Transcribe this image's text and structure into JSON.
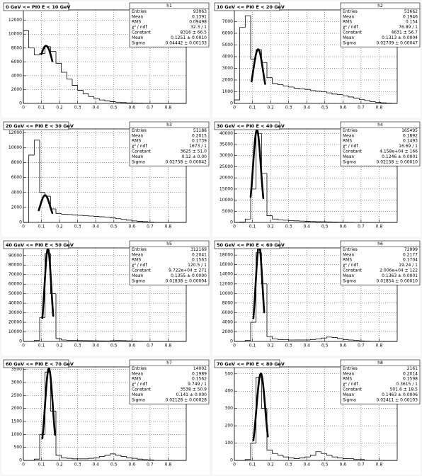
{
  "chart_data": [
    {
      "type": "histogram",
      "title": "0 GeV <= PI0 E < 10 GeV",
      "bins": [
        0,
        0.03,
        0.06,
        0.09,
        0.12,
        0.15,
        0.18,
        0.21,
        0.24,
        0.27,
        0.3,
        0.33,
        0.36,
        0.39,
        0.42,
        0.45,
        0.48,
        0.51,
        0.54,
        0.57,
        0.6,
        0.63,
        0.66,
        0.69,
        0.72,
        0.75,
        0.78,
        0.81,
        0.84,
        0.87,
        0.9
      ],
      "values": [
        10500,
        8000,
        7000,
        7200,
        8200,
        7500,
        5800,
        4500,
        3500,
        2600,
        1900,
        1400,
        1000,
        700,
        500,
        350,
        250,
        180,
        120,
        80,
        50,
        30,
        20,
        10,
        5,
        0,
        0,
        0,
        0,
        0
      ],
      "xlim": [
        0,
        0.9
      ],
      "xticks": [
        0,
        0.1,
        0.2,
        0.3,
        0.4,
        0.5,
        0.6,
        0.7,
        0.8
      ],
      "ylim": [
        0,
        13500
      ],
      "yticks": [
        0,
        2000,
        4000,
        6000,
        8000,
        10000,
        12000
      ],
      "grid": true,
      "color": "#000000",
      "fit": {
        "constant": 8316,
        "mean": 0.1251,
        "sigma": 0.04442,
        "range": [
          0.1,
          0.16
        ]
      },
      "stats": {
        "name": "h1",
        "rows": [
          [
            "Entries",
            "93063"
          ],
          [
            "Mean",
            "0.1391"
          ],
          [
            "RMS",
            "0.09498"
          ],
          [
            "χ² / ndf",
            "32.3 / 1"
          ],
          [
            "Constant",
            "8316 ± 66.5"
          ],
          [
            "Mean",
            "0.1251 ± 0.0010"
          ],
          [
            "Sigma",
            "0.04442 ± 0.00133"
          ]
        ]
      }
    },
    {
      "type": "histogram",
      "title": "10 GeV <= PI0 E < 20 GeV",
      "bins": [
        0,
        0.03,
        0.06,
        0.09,
        0.12,
        0.15,
        0.18,
        0.21,
        0.24,
        0.27,
        0.3,
        0.33,
        0.36,
        0.39,
        0.42,
        0.45,
        0.48,
        0.51,
        0.54,
        0.57,
        0.6,
        0.63,
        0.66,
        0.69,
        0.72,
        0.75,
        0.78,
        0.81,
        0.84,
        0.87,
        0.9
      ],
      "values": [
        300,
        6500,
        7500,
        3800,
        4600,
        3500,
        2200,
        1700,
        1600,
        1500,
        1400,
        1300,
        1250,
        1200,
        1100,
        1050,
        1000,
        900,
        800,
        750,
        650,
        550,
        450,
        350,
        250,
        150,
        100,
        50,
        20,
        0
      ],
      "xlim": [
        0,
        0.9
      ],
      "xticks": [
        0,
        0.1,
        0.2,
        0.3,
        0.4,
        0.5,
        0.6,
        0.7,
        0.8
      ],
      "ylim": [
        0,
        8000
      ],
      "yticks": [
        0,
        1000,
        2000,
        3000,
        4000,
        5000,
        6000,
        7000
      ],
      "grid": true,
      "color": "#000000",
      "fit": {
        "constant": 4631,
        "mean": 0.1313,
        "sigma": 0.02709,
        "range": [
          0.095,
          0.17
        ]
      },
      "stats": {
        "name": "h2",
        "rows": [
          [
            "Entries",
            "53662"
          ],
          [
            "Mean",
            "0.1946"
          ],
          [
            "RMS",
            "0.154"
          ],
          [
            "χ² / ndf",
            "76.89 / 1"
          ],
          [
            "Constant",
            "4631 ± 56.7"
          ],
          [
            "Mean",
            "0.1313 ± 0.0004"
          ],
          [
            "Sigma",
            "0.02709 ± 0.00047"
          ]
        ]
      }
    },
    {
      "type": "histogram",
      "title": "20 GeV <= PI0 E < 30 GeV",
      "bins": [
        0,
        0.03,
        0.06,
        0.09,
        0.12,
        0.15,
        0.18,
        0.21,
        0.24,
        0.27,
        0.3,
        0.33,
        0.36,
        0.39,
        0.42,
        0.45,
        0.48,
        0.51,
        0.54,
        0.57,
        0.6,
        0.63,
        0.66,
        0.69,
        0.72,
        0.75,
        0.78,
        0.81,
        0.84,
        0.87,
        0.9
      ],
      "values": [
        0,
        9000,
        11000,
        4000,
        3500,
        1800,
        1200,
        1100,
        1050,
        1000,
        950,
        900,
        850,
        800,
        750,
        700,
        600,
        500,
        400,
        300,
        200,
        150,
        100,
        50,
        0,
        0,
        0,
        0,
        0,
        0
      ],
      "xlim": [
        0,
        0.9
      ],
      "xticks": [
        0,
        0.1,
        0.2,
        0.3,
        0.4,
        0.5,
        0.6,
        0.7,
        0.8
      ],
      "ylim": [
        0,
        12500
      ],
      "yticks": [
        0,
        2000,
        4000,
        6000,
        8000,
        10000,
        12000
      ],
      "grid": true,
      "color": "#000000",
      "fit": {
        "constant": 3625,
        "mean": 0.12,
        "sigma": 0.02758,
        "range": [
          0.085,
          0.16
        ]
      },
      "stats": {
        "name": "h3",
        "rows": [
          [
            "Entries",
            "51188"
          ],
          [
            "Mean",
            "0.2015"
          ],
          [
            "RMS",
            "0.1739"
          ],
          [
            "χ² / ndf",
            "1673 / 1"
          ],
          [
            "Constant",
            "3625 ± 51.0"
          ],
          [
            "Mean",
            "0.12 ± 0.00"
          ],
          [
            "Sigma",
            "0.02758 ± 0.00042"
          ]
        ]
      }
    },
    {
      "type": "histogram",
      "title": "30 GeV <= PI0 E < 40 GeV",
      "bins": [
        0,
        0.03,
        0.06,
        0.09,
        0.12,
        0.15,
        0.18,
        0.21,
        0.24,
        0.27,
        0.3,
        0.33,
        0.36,
        0.39,
        0.42,
        0.45,
        0.48,
        0.51,
        0.54,
        0.57,
        0.6,
        0.63,
        0.66,
        0.69,
        0.72,
        0.75,
        0.78,
        0.81,
        0.84,
        0.87,
        0.9
      ],
      "values": [
        0,
        200,
        1500,
        15000,
        40000,
        22000,
        3000,
        1500,
        1200,
        1000,
        800,
        700,
        600,
        500,
        400,
        300,
        300,
        250,
        200,
        150,
        100,
        80,
        50,
        30,
        20,
        10,
        0,
        0,
        0,
        0
      ],
      "xlim": [
        0,
        0.9
      ],
      "xticks": [
        0,
        0.1,
        0.2,
        0.3,
        0.4,
        0.5,
        0.6,
        0.7,
        0.8
      ],
      "ylim": [
        0,
        42000
      ],
      "yticks": [
        0,
        5000,
        10000,
        15000,
        20000,
        25000,
        30000,
        35000,
        40000
      ],
      "grid": true,
      "color": "#000000",
      "fit": {
        "constant": 41580,
        "mean": 0.1246,
        "sigma": 0.02158,
        "range": [
          0.09,
          0.16
        ]
      },
      "stats": {
        "name": "h4",
        "rows": [
          [
            "Entries",
            "165495"
          ],
          [
            "Mean",
            "0.1892"
          ],
          [
            "RMS",
            "0.1493"
          ],
          [
            "χ² / ndf",
            "16.69 / 1"
          ],
          [
            "Constant",
            "4.158e+04 ± 166"
          ],
          [
            "Mean",
            "0.1246 ± 0.0001"
          ],
          [
            "Sigma",
            "0.02158 ± 0.00010"
          ]
        ]
      }
    },
    {
      "type": "histogram",
      "title": "40 GeV <= PI0 E < 50 GeV",
      "bins": [
        0,
        0.03,
        0.06,
        0.09,
        0.12,
        0.15,
        0.18,
        0.21,
        0.24,
        0.27,
        0.3,
        0.33,
        0.36,
        0.39,
        0.42,
        0.45,
        0.48,
        0.51,
        0.54,
        0.57,
        0.6,
        0.63,
        0.66,
        0.69,
        0.72,
        0.75,
        0.78,
        0.81,
        0.84,
        0.87,
        0.9
      ],
      "values": [
        0,
        0,
        1000,
        25000,
        92000,
        50000,
        3000,
        1500,
        1200,
        1000,
        900,
        800,
        700,
        600,
        500,
        500,
        700,
        900,
        800,
        600,
        400,
        300,
        200,
        100,
        50,
        0,
        0,
        0,
        0,
        0
      ],
      "xlim": [
        0,
        0.9
      ],
      "xticks": [
        0,
        0.1,
        0.2,
        0.3,
        0.4,
        0.5,
        0.6,
        0.7,
        0.8
      ],
      "ylim": [
        0,
        98000
      ],
      "yticks": [
        0,
        10000,
        20000,
        30000,
        40000,
        50000,
        60000,
        70000,
        80000,
        90000
      ],
      "grid": true,
      "color": "#000000",
      "fit": {
        "constant": 97220,
        "mean": 0.1355,
        "sigma": 0.01838,
        "range": [
          0.105,
          0.165
        ]
      },
      "stats": {
        "name": "h5",
        "rows": [
          [
            "Entries",
            "312169"
          ],
          [
            "Mean",
            "0.2041"
          ],
          [
            "RMS",
            "0.1563"
          ],
          [
            "χ² / ndf",
            "120.5 / 1"
          ],
          [
            "Constant",
            "9.722e+04 ± 271"
          ],
          [
            "Mean",
            "0.1355 ± 0.0000"
          ],
          [
            "Sigma",
            "0.01838 ± 0.00004"
          ]
        ]
      }
    },
    {
      "type": "histogram",
      "title": "50 GeV <= PI0 E < 60 GeV",
      "bins": [
        0,
        0.03,
        0.06,
        0.09,
        0.12,
        0.15,
        0.18,
        0.21,
        0.24,
        0.27,
        0.3,
        0.33,
        0.36,
        0.39,
        0.42,
        0.45,
        0.48,
        0.51,
        0.54,
        0.57,
        0.6,
        0.63,
        0.66,
        0.69,
        0.72,
        0.75,
        0.78,
        0.81,
        0.84,
        0.87,
        0.9
      ],
      "values": [
        0,
        0,
        200,
        4000,
        18500,
        12000,
        1000,
        500,
        400,
        350,
        300,
        300,
        300,
        300,
        400,
        500,
        700,
        900,
        800,
        600,
        400,
        300,
        200,
        100,
        50,
        0,
        0,
        0,
        0,
        0
      ],
      "xlim": [
        0,
        0.9
      ],
      "xticks": [
        0,
        0.1,
        0.2,
        0.3,
        0.4,
        0.5,
        0.6,
        0.7,
        0.8
      ],
      "ylim": [
        0,
        19500
      ],
      "yticks": [
        0,
        2000,
        4000,
        6000,
        8000,
        10000,
        12000,
        14000,
        16000,
        18000
      ],
      "grid": true,
      "color": "#000000",
      "fit": {
        "constant": 20060,
        "mean": 0.1363,
        "sigma": 0.01854,
        "range": [
          0.105,
          0.165
        ]
      },
      "stats": {
        "name": "h6",
        "rows": [
          [
            "Entries",
            "72999"
          ],
          [
            "Mean",
            "0.2177"
          ],
          [
            "RMS",
            "0.1704"
          ],
          [
            "χ² / ndf",
            "19.24 / 1"
          ],
          [
            "Constant",
            "2.006e+04 ± 122"
          ],
          [
            "Mean",
            "0.1363 ± 0.0001"
          ],
          [
            "Sigma",
            "0.01854 ± 0.00010"
          ]
        ]
      }
    },
    {
      "type": "histogram",
      "title": "60 GeV <= PI0 E < 70 GeV",
      "bins": [
        0,
        0.03,
        0.06,
        0.09,
        0.12,
        0.15,
        0.18,
        0.21,
        0.24,
        0.27,
        0.3,
        0.33,
        0.36,
        0.39,
        0.42,
        0.45,
        0.48,
        0.51,
        0.54,
        0.57,
        0.6,
        0.63,
        0.66,
        0.69,
        0.72,
        0.75,
        0.78,
        0.81,
        0.84,
        0.87,
        0.9
      ],
      "values": [
        0,
        0,
        50,
        1000,
        3400,
        1900,
        200,
        100,
        80,
        60,
        60,
        60,
        80,
        100,
        150,
        200,
        250,
        200,
        150,
        100,
        80,
        50,
        30,
        20,
        0,
        0,
        0,
        0,
        0,
        0
      ],
      "xlim": [
        0,
        0.9
      ],
      "xticks": [
        0,
        0.1,
        0.2,
        0.3,
        0.4,
        0.5,
        0.6,
        0.7,
        0.8
      ],
      "ylim": [
        0,
        3600
      ],
      "yticks": [
        0,
        500,
        1000,
        1500,
        2000,
        2500,
        3000,
        3500
      ],
      "grid": true,
      "color": "#000000",
      "fit": {
        "constant": 3538,
        "mean": 0.141,
        "sigma": 0.02128,
        "range": [
          0.105,
          0.175
        ]
      },
      "stats": {
        "name": "h7",
        "rows": [
          [
            "Entries",
            "14002"
          ],
          [
            "Mean",
            "0.1989"
          ],
          [
            "RMS",
            "0.1562"
          ],
          [
            "χ² / ndf",
            "9.749 / 1"
          ],
          [
            "Constant",
            "3538 ± 50.9"
          ],
          [
            "Mean",
            "0.141 ± 0.000"
          ],
          [
            "Sigma",
            "0.02128 ± 0.00028"
          ]
        ]
      }
    },
    {
      "type": "histogram",
      "title": "70 GeV <= PI0 E < 80 GeV",
      "bins": [
        0,
        0.03,
        0.06,
        0.09,
        0.12,
        0.15,
        0.18,
        0.21,
        0.24,
        0.27,
        0.3,
        0.33,
        0.36,
        0.39,
        0.42,
        0.45,
        0.48,
        0.51,
        0.54,
        0.57,
        0.6,
        0.63,
        0.66,
        0.69,
        0.72,
        0.75,
        0.78,
        0.81,
        0.84,
        0.87,
        0.9
      ],
      "values": [
        0,
        0,
        5,
        100,
        480,
        300,
        60,
        40,
        30,
        20,
        15,
        10,
        15,
        20,
        30,
        50,
        40,
        30,
        20,
        15,
        10,
        10,
        5,
        5,
        0,
        0,
        0,
        0,
        0,
        0
      ],
      "xlim": [
        0,
        0.9
      ],
      "xticks": [
        0,
        0.1,
        0.2,
        0.3,
        0.4,
        0.5,
        0.6,
        0.7,
        0.8
      ],
      "ylim": [
        0,
        540
      ],
      "yticks": [
        0,
        100,
        200,
        300,
        400,
        500
      ],
      "grid": true,
      "color": "#000000",
      "fit": {
        "constant": 501.6,
        "mean": 0.1463,
        "sigma": 0.02411,
        "range": [
          0.105,
          0.185
        ]
      },
      "stats": {
        "name": "h8",
        "rows": [
          [
            "Entries",
            "2161"
          ],
          [
            "Mean",
            "0.2014"
          ],
          [
            "RMS",
            "0.1598"
          ],
          [
            "χ² / ndf",
            "0.3615 / 1"
          ],
          [
            "Constant",
            "501.6 ± 18.5"
          ],
          [
            "Mean",
            "0.1463 ± 0.0006"
          ],
          [
            "Sigma",
            "0.02411 ± 0.00103"
          ]
        ]
      }
    }
  ]
}
